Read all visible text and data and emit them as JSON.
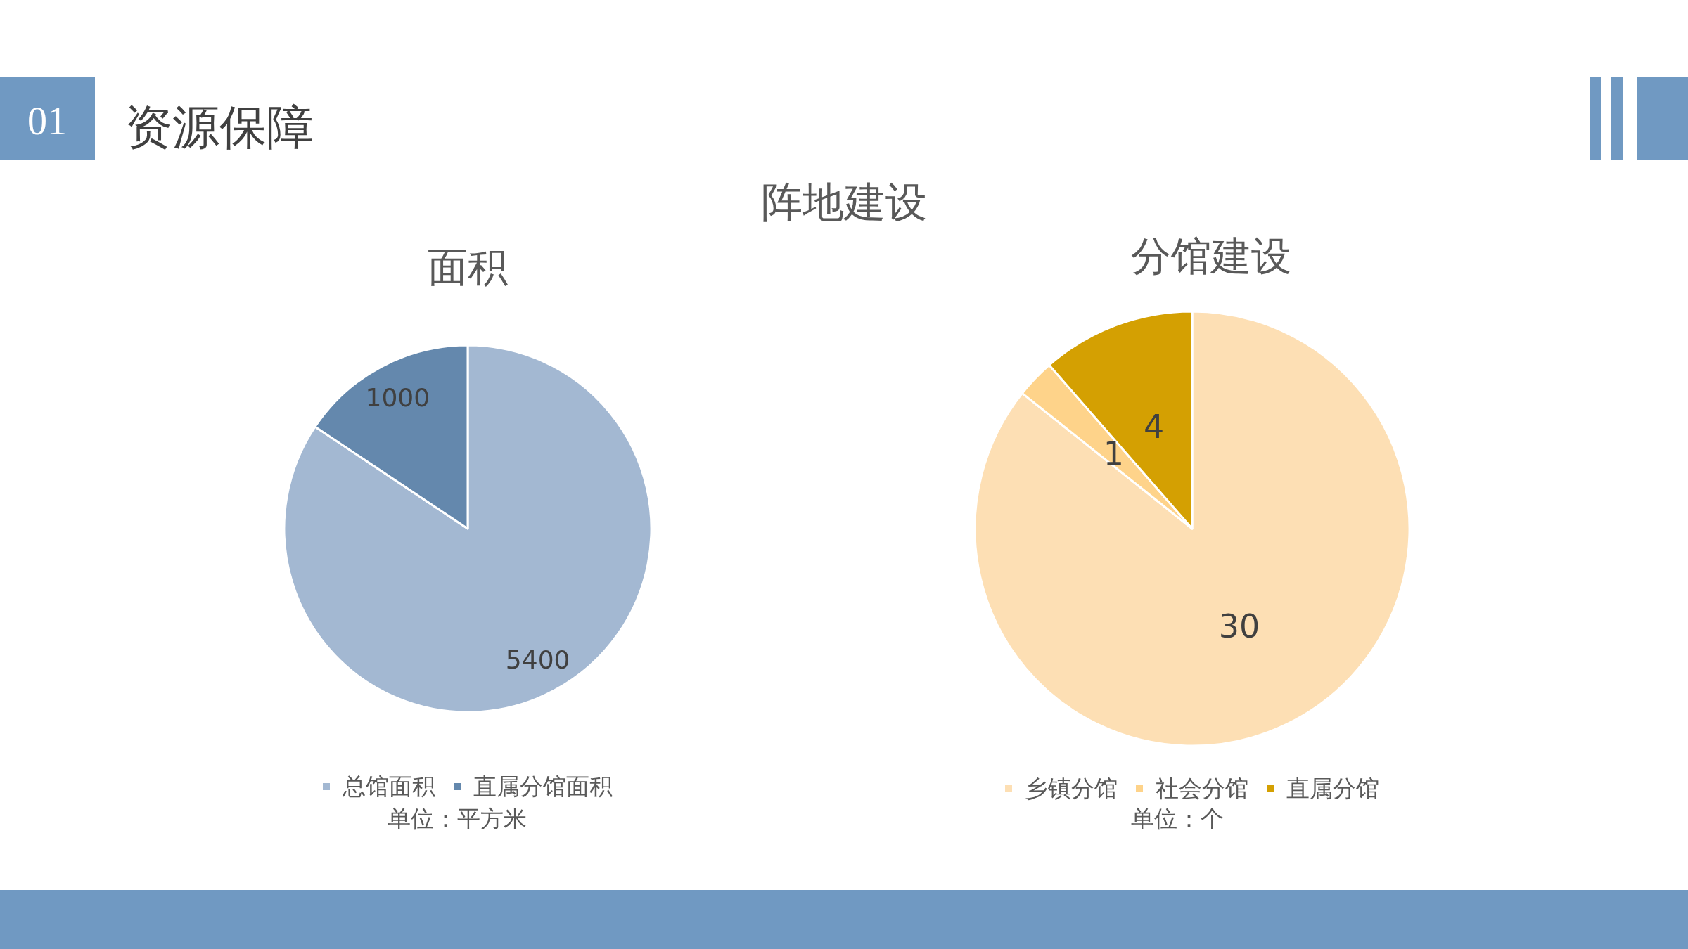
{
  "chart_data": [
    {
      "type": "pie",
      "title": "面积",
      "categories": [
        "总馆面积",
        "直属分馆面积"
      ],
      "values": [
        5400,
        1000
      ],
      "colors": [
        "#a3b8d2",
        "#6488ad"
      ],
      "data_labels": true,
      "legend": "bottom",
      "annotations": [
        "01",
        "资源保障",
        "阵地建设",
        "单位：平方米"
      ]
    },
    {
      "type": "pie",
      "title": "分馆建设",
      "categories": [
        "乡镇分馆",
        "社会分馆",
        "直属分馆"
      ],
      "values": [
        30,
        1,
        4
      ],
      "colors": [
        "#fddfb4",
        "#fed38a",
        "#d4a002"
      ],
      "data_labels": true,
      "legend": "bottom",
      "annotations": [
        "单位：个"
      ]
    }
  ]
}
